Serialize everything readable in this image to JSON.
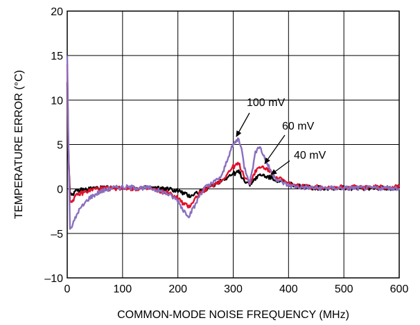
{
  "chart_data": {
    "type": "line",
    "xlabel": "COMMON-MODE NOISE FREQUENCY (MHz)",
    "ylabel": "TEMPERATURE ERROR (°C)",
    "xlim": [
      0,
      600
    ],
    "ylim": [
      -10,
      20
    ],
    "x_ticks": [
      0,
      100,
      200,
      300,
      400,
      500,
      600
    ],
    "x_tick_labels": [
      "0",
      "100",
      "200",
      "300",
      "400",
      "500",
      "600"
    ],
    "y_ticks": [
      -10,
      -5,
      0,
      5,
      10,
      15,
      20
    ],
    "y_tick_labels": [
      "–10",
      "–5",
      "0",
      "5",
      "10",
      "15",
      "20"
    ],
    "grid": true,
    "series": [
      {
        "name": "40 mV",
        "color": "#000000",
        "x": [
          0,
          2,
          5,
          10,
          20,
          50,
          100,
          150,
          180,
          200,
          210,
          220,
          240,
          260,
          280,
          300,
          310,
          320,
          330,
          340,
          350,
          360,
          380,
          400,
          420,
          450,
          500,
          550,
          600
        ],
        "y": [
          12,
          4,
          -0.5,
          -0.5,
          -0.2,
          0.1,
          0.1,
          0.1,
          0,
          -0.2,
          -0.5,
          -0.8,
          -0.3,
          0.3,
          1.0,
          1.7,
          1.9,
          1.0,
          0.5,
          1.2,
          1.6,
          1.4,
          1.0,
          0.6,
          0.3,
          0.1,
          0.1,
          0.1,
          0.1
        ]
      },
      {
        "name": "60 mV",
        "color": "#e0122c",
        "x": [
          0,
          2,
          5,
          10,
          20,
          50,
          100,
          150,
          180,
          200,
          210,
          220,
          230,
          240,
          260,
          280,
          300,
          310,
          320,
          330,
          340,
          350,
          360,
          370,
          380,
          400,
          420,
          450,
          500,
          550,
          600
        ],
        "y": [
          14,
          5,
          -1.5,
          -1.2,
          -0.6,
          0,
          0.1,
          0,
          -0.4,
          -1.0,
          -1.7,
          -2.0,
          -1.2,
          -0.4,
          0.3,
          1.0,
          2.5,
          2.8,
          1.5,
          0.6,
          2.0,
          2.5,
          2.3,
          1.8,
          1.3,
          0.6,
          0.3,
          0.2,
          0.2,
          0.2,
          0.2
        ]
      },
      {
        "name": "100 mV",
        "color": "#8a6fbf",
        "x": [
          0,
          2,
          5,
          10,
          20,
          40,
          60,
          80,
          100,
          150,
          180,
          200,
          210,
          220,
          230,
          240,
          250,
          260,
          280,
          290,
          300,
          310,
          315,
          320,
          330,
          340,
          345,
          350,
          360,
          370,
          380,
          400,
          420,
          450,
          500,
          550,
          600
        ],
        "y": [
          15,
          6,
          -4.5,
          -4.0,
          -2.5,
          -1.0,
          -0.3,
          0.1,
          0.2,
          0.1,
          -0.5,
          -1.3,
          -2.4,
          -3.0,
          -2.0,
          -0.6,
          0.2,
          0.5,
          1.5,
          3.5,
          5.0,
          5.7,
          4.5,
          2.5,
          0.7,
          4.0,
          4.9,
          4.5,
          3.0,
          1.8,
          1.0,
          0.4,
          0.2,
          0.1,
          0.1,
          0.1,
          0.1
        ]
      }
    ],
    "annotations": [
      {
        "text": "100 mV",
        "series": "100 mV"
      },
      {
        "text": "60 mV",
        "series": "60 mV"
      },
      {
        "text": "40 mV",
        "series": "40 mV"
      }
    ]
  }
}
